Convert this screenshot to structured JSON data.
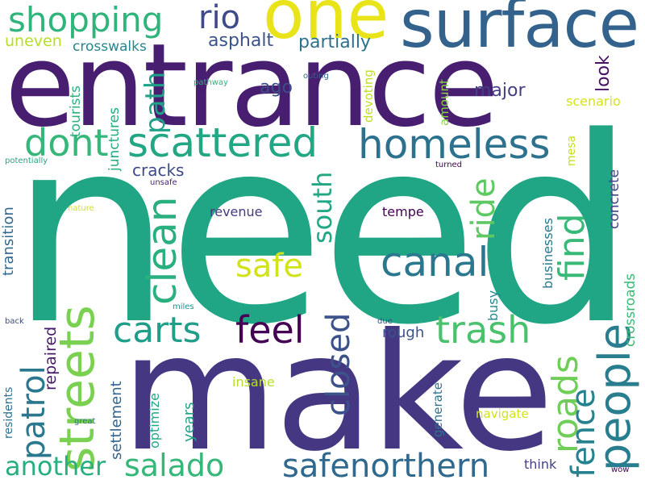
{
  "palette": {
    "dark_purple": "#482878",
    "deep_purple": "#440154",
    "indigo": "#443983",
    "blue": "#31688e",
    "steel": "#3b528b",
    "teal": "#21918c",
    "sea": "#1f9e89",
    "green": "#35b779",
    "green2": "#2ab07f",
    "lime": "#6ece58",
    "chartreuse": "#b5de2b",
    "yellow": "#fde725",
    "cyan_blue": "#2c728e",
    "light_green": "#90d743"
  },
  "words": [
    {
      "text": "need",
      "color": "#21a685"
    },
    {
      "text": "entrance",
      "color": "#481f70"
    },
    {
      "text": "make",
      "color": "#453781"
    },
    {
      "text": "surface",
      "color": "#33638d"
    },
    {
      "text": "one",
      "color": "#e8e419"
    },
    {
      "text": "streets",
      "color": "#7ad151"
    },
    {
      "text": "shopping",
      "color": "#2fb47c"
    },
    {
      "text": "rio",
      "color": "#3e4a89"
    },
    {
      "text": "scattered",
      "color": "#22a785"
    },
    {
      "text": "homeless",
      "color": "#2c728e"
    },
    {
      "text": "dont",
      "color": "#35b779"
    },
    {
      "text": "clean",
      "color": "#2ab07f"
    },
    {
      "text": "canal",
      "color": "#2a788e"
    },
    {
      "text": "safe",
      "color": "#d2e21b"
    },
    {
      "text": "people",
      "color": "#287d8e"
    },
    {
      "text": "carts",
      "color": "#1f9e89"
    },
    {
      "text": "feel",
      "color": "#440154"
    },
    {
      "text": "trash",
      "color": "#4ac16d"
    },
    {
      "text": "patrol",
      "color": "#2a788e"
    },
    {
      "text": "closed",
      "color": "#3b528b"
    },
    {
      "text": "roads",
      "color": "#6ece58"
    },
    {
      "text": "fence",
      "color": "#26828e"
    },
    {
      "text": "salado",
      "color": "#35b779"
    },
    {
      "text": "safenorthern",
      "color": "#31688e"
    },
    {
      "text": "another",
      "color": "#29af7f"
    },
    {
      "text": "south",
      "color": "#22a785"
    },
    {
      "text": "ride",
      "color": "#5ec962"
    },
    {
      "text": "find",
      "color": "#38b977"
    },
    {
      "text": "path",
      "color": "#1fa088"
    },
    {
      "text": "cracks",
      "color": "#3e4989"
    },
    {
      "text": "asphalt",
      "color": "#3b528b"
    },
    {
      "text": "partially",
      "color": "#2d708e"
    },
    {
      "text": "crosswalks",
      "color": "#25858e"
    },
    {
      "text": "uneven",
      "color": "#b5de2b"
    },
    {
      "text": "ago",
      "color": "#3d4d8a"
    },
    {
      "text": "major",
      "color": "#433e85"
    },
    {
      "text": "look",
      "color": "#471164"
    },
    {
      "text": "scenario",
      "color": "#d8e219"
    },
    {
      "text": "tourists",
      "color": "#2db27d"
    },
    {
      "text": "junctures",
      "color": "#25ac82"
    },
    {
      "text": "devoting",
      "color": "#c0df25"
    },
    {
      "text": "amount",
      "color": "#86d549"
    },
    {
      "text": "mesa",
      "color": "#c2df23"
    },
    {
      "text": "concrete",
      "color": "#404688"
    },
    {
      "text": "transition",
      "color": "#31688e"
    },
    {
      "text": "revenue",
      "color": "#443983"
    },
    {
      "text": "tempe",
      "color": "#440154"
    },
    {
      "text": "businesses",
      "color": "#2a788e"
    },
    {
      "text": "busy",
      "color": "#24868e"
    },
    {
      "text": "crossroads",
      "color": "#3aba76"
    },
    {
      "text": "rough",
      "color": "#3b528b"
    },
    {
      "text": "repaired",
      "color": "#481a6c"
    },
    {
      "text": "settlement",
      "color": "#33638d"
    },
    {
      "text": "optimize",
      "color": "#22a785"
    },
    {
      "text": "years",
      "color": "#1fa188"
    },
    {
      "text": "insane",
      "color": "#b5de2b"
    },
    {
      "text": "generate",
      "color": "#2c728e"
    },
    {
      "text": "navigate",
      "color": "#d2e21b"
    },
    {
      "text": "think",
      "color": "#423f85"
    },
    {
      "text": "residents",
      "color": "#2c728e"
    },
    {
      "text": "pathway",
      "color": "#2db27d"
    },
    {
      "text": "outing",
      "color": "#33638d"
    },
    {
      "text": "potentially",
      "color": "#22a785"
    },
    {
      "text": "turned",
      "color": "#440154"
    },
    {
      "text": "unsafe",
      "color": "#482475"
    },
    {
      "text": "nature",
      "color": "#d2e21b"
    },
    {
      "text": "miles",
      "color": "#21918c"
    },
    {
      "text": "back",
      "color": "#3e4989"
    },
    {
      "text": "due",
      "color": "#3b528b"
    },
    {
      "text": "great",
      "color": "#2c728e"
    },
    {
      "text": "wow",
      "color": "#440154"
    }
  ]
}
